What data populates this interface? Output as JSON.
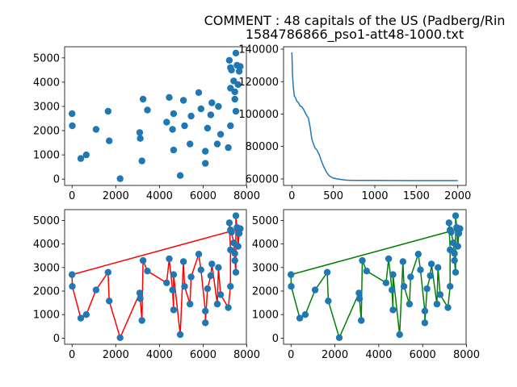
{
  "figure": {
    "title_lines": [
      "COMMENT : 48 capitals of the US (Padberg/Rin",
      "1584786866_pso1-att48-1000.txt"
    ]
  },
  "chart_data": [
    {
      "type": "scatter",
      "panel": "top-left",
      "xlim": [
        -340,
        7980
      ],
      "ylim": [
        -260,
        5460
      ],
      "xticks": [
        0,
        2000,
        4000,
        6000,
        8000
      ],
      "yticks": [
        0,
        1000,
        2000,
        3000,
        4000,
        5000
      ],
      "point_color": "#1f77b4",
      "points_ref": "cities"
    },
    {
      "type": "line",
      "panel": "top-right",
      "xlim": [
        -100,
        2100
      ],
      "ylim": [
        56000,
        141500
      ],
      "xticks": [
        0,
        500,
        1000,
        1500,
        2000
      ],
      "yticks": [
        60000,
        80000,
        100000,
        120000,
        140000
      ],
      "line_color": "#1f77b4",
      "x": [
        0,
        4,
        8,
        12,
        20,
        30,
        40,
        60,
        80,
        100,
        120,
        140,
        160,
        180,
        200,
        220,
        240,
        250,
        280,
        300,
        330,
        350,
        380,
        400,
        420,
        450,
        480,
        500,
        550,
        600,
        650,
        700,
        800,
        1000,
        1500,
        2000
      ],
      "y": [
        138000,
        132000,
        124000,
        121000,
        116000,
        111000,
        110500,
        108000,
        107000,
        105000,
        104500,
        103000,
        101000,
        99000,
        97500,
        92000,
        85000,
        83000,
        79000,
        78000,
        75000,
        72000,
        68000,
        66000,
        64000,
        62000,
        61000,
        60500,
        60000,
        59600,
        59300,
        59200,
        59100,
        59100,
        59000,
        59000
      ]
    },
    {
      "type": "line",
      "panel": "bottom-left",
      "xlim": [
        -340,
        7980
      ],
      "ylim": [
        -260,
        5460
      ],
      "xticks": [
        0,
        2000,
        4000,
        6000,
        8000
      ],
      "yticks": [
        0,
        1000,
        2000,
        3000,
        4000,
        5000
      ],
      "point_color": "#1f77b4",
      "line_color": "#ff0000",
      "points_ref": "cities",
      "tour": [
        0,
        1,
        2,
        3,
        4,
        5,
        6,
        7,
        8,
        9,
        10,
        11,
        12,
        13,
        14,
        15,
        16,
        17,
        18,
        19,
        20,
        21,
        22,
        23,
        24,
        25,
        26,
        27,
        28,
        29,
        30,
        31,
        32,
        33,
        34,
        35,
        36,
        37,
        38,
        39,
        40,
        41,
        42,
        43,
        44,
        45,
        46,
        47
      ]
    },
    {
      "type": "line",
      "panel": "bottom-right",
      "xlim": [
        -340,
        7980
      ],
      "ylim": [
        -260,
        5460
      ],
      "xticks": [
        0,
        2000,
        4000,
        6000,
        8000
      ],
      "yticks": [
        0,
        1000,
        2000,
        3000,
        4000,
        5000
      ],
      "point_color": "#1f77b4",
      "line_color": "#008000",
      "points_ref": "cities",
      "tour": [
        0,
        1,
        2,
        3,
        4,
        5,
        6,
        7,
        8,
        9,
        10,
        11,
        12,
        13,
        14,
        15,
        16,
        17,
        18,
        19,
        20,
        21,
        22,
        23,
        24,
        25,
        26,
        27,
        28,
        29,
        30,
        31,
        32,
        33,
        34,
        35,
        36,
        37,
        38,
        39,
        40,
        41,
        42,
        43,
        44,
        45,
        46,
        47
      ]
    }
  ],
  "cities": [
    [
      0,
      2700
    ],
    [
      10,
      2200
    ],
    [
      400,
      850
    ],
    [
      650,
      1000
    ],
    [
      1100,
      2050
    ],
    [
      1650,
      2800
    ],
    [
      1700,
      1580
    ],
    [
      2200,
      20
    ],
    [
      3100,
      1920
    ],
    [
      3120,
      1680
    ],
    [
      3200,
      750
    ],
    [
      3250,
      3300
    ],
    [
      3450,
      2850
    ],
    [
      4330,
      2350
    ],
    [
      4450,
      3370
    ],
    [
      4600,
      2050
    ],
    [
      4650,
      1200
    ],
    [
      4650,
      2700
    ],
    [
      4950,
      150
    ],
    [
      5100,
      3250
    ],
    [
      5150,
      2200
    ],
    [
      5400,
      1450
    ],
    [
      5450,
      2600
    ],
    [
      5800,
      3570
    ],
    [
      5900,
      2900
    ],
    [
      6100,
      1150
    ],
    [
      6100,
      650
    ],
    [
      6200,
      2100
    ],
    [
      6350,
      2650
    ],
    [
      6400,
      3150
    ],
    [
      6650,
      1450
    ],
    [
      6700,
      3000
    ],
    [
      6800,
      1850
    ],
    [
      7150,
      1300
    ],
    [
      7250,
      2200
    ],
    [
      7250,
      3750
    ],
    [
      7200,
      4900
    ],
    [
      7250,
      4600
    ],
    [
      7300,
      4500
    ],
    [
      7400,
      4050
    ],
    [
      7450,
      3600
    ],
    [
      7450,
      3300
    ],
    [
      7500,
      2800
    ],
    [
      7500,
      5200
    ],
    [
      7550,
      4700
    ],
    [
      7600,
      3900
    ],
    [
      7650,
      4450
    ],
    [
      7700,
      4650
    ]
  ]
}
